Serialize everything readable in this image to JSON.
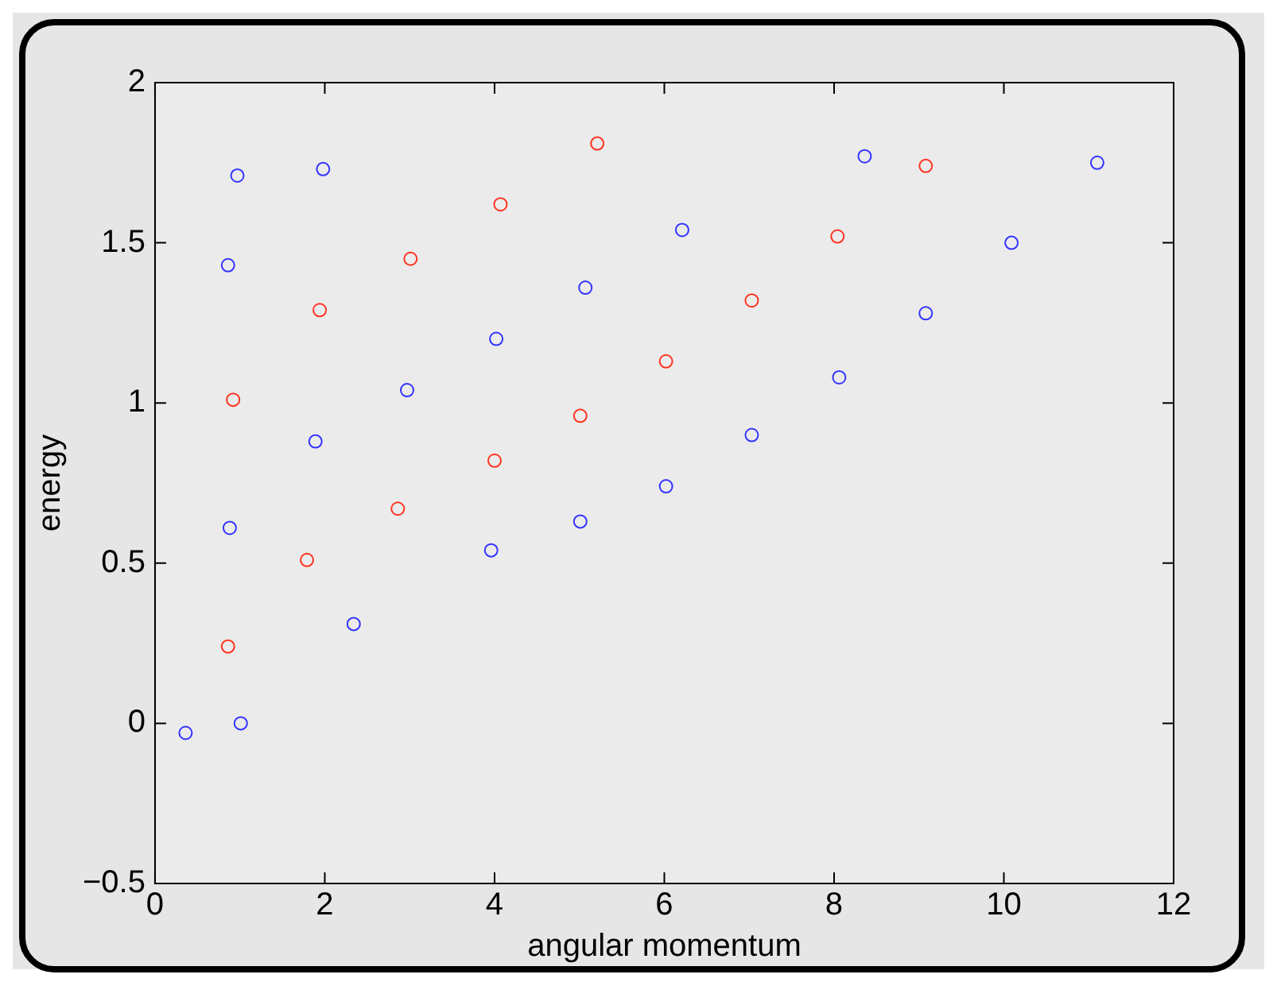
{
  "chart_data": {
    "type": "scatter",
    "xlabel": "angular momentum",
    "ylabel": "energy",
    "xlim": [
      0,
      12
    ],
    "ylim": [
      -0.5,
      2
    ],
    "xticks": [
      0,
      2,
      4,
      6,
      8,
      10,
      12
    ],
    "yticks": [
      {
        "value": -0.5,
        "label": "−0.5"
      },
      0,
      0.5,
      1,
      1.5,
      2
    ],
    "grid": false,
    "legend": false,
    "marker": "circle",
    "series": [
      {
        "color": "#3333ff",
        "x": [
          0.36,
          1.01,
          0.88,
          2.34,
          1.89,
          2.97,
          3.96,
          4.02,
          5.01,
          5.07,
          6.02,
          6.21,
          7.03,
          8.06,
          8.36,
          9.08,
          10.09,
          11.1,
          0.86,
          0.97,
          1.98
        ],
        "values": [
          -0.03,
          0.0,
          0.61,
          0.31,
          0.88,
          1.04,
          0.54,
          1.2,
          0.63,
          1.36,
          0.74,
          1.54,
          0.9,
          1.08,
          1.77,
          1.28,
          1.5,
          1.75,
          1.43,
          1.71,
          1.73
        ]
      },
      {
        "color": "#ff3322",
        "x": [
          0.86,
          0.92,
          1.79,
          1.94,
          2.86,
          3.01,
          4.0,
          4.07,
          5.01,
          5.21,
          6.02,
          7.03,
          8.04,
          9.08
        ],
        "values": [
          0.24,
          1.01,
          0.51,
          1.29,
          0.67,
          1.45,
          0.82,
          1.62,
          0.96,
          1.81,
          1.13,
          1.32,
          1.52,
          1.74
        ]
      }
    ]
  }
}
